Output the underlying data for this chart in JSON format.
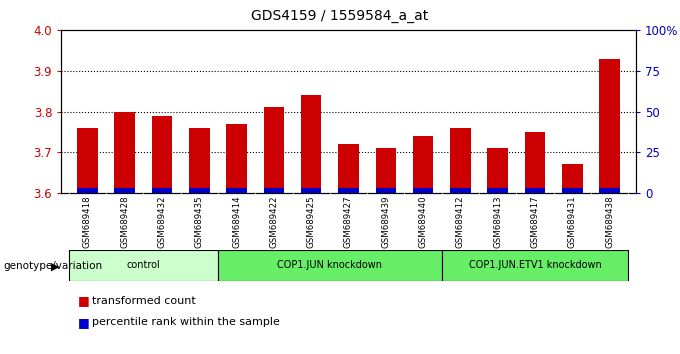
{
  "title": "GDS4159 / 1559584_a_at",
  "samples": [
    "GSM689418",
    "GSM689428",
    "GSM689432",
    "GSM689435",
    "GSM689414",
    "GSM689422",
    "GSM689425",
    "GSM689427",
    "GSM689439",
    "GSM689440",
    "GSM689412",
    "GSM689413",
    "GSM689417",
    "GSM689431",
    "GSM689438"
  ],
  "red_values": [
    3.76,
    3.8,
    3.79,
    3.76,
    3.77,
    3.81,
    3.84,
    3.72,
    3.71,
    3.74,
    3.76,
    3.71,
    3.75,
    3.67,
    3.93
  ],
  "blue_pct": [
    3,
    3,
    3,
    3,
    3,
    3,
    3,
    3,
    3,
    3,
    3,
    3,
    3,
    3,
    3
  ],
  "ylim_left": [
    3.6,
    4.0
  ],
  "ylim_right": [
    0,
    100
  ],
  "yticks_left": [
    3.6,
    3.7,
    3.8,
    3.9,
    4.0
  ],
  "yticks_right": [
    0,
    25,
    50,
    75,
    100
  ],
  "ytick_right_labels": [
    "0",
    "25",
    "50",
    "75",
    "100%"
  ],
  "bar_color": "#cc0000",
  "blue_color": "#0000cc",
  "bar_width": 0.55,
  "ylabel_left_color": "#cc0000",
  "ylabel_right_color": "#0000bb",
  "bg_color": "#ffffff",
  "title_fontsize": 10,
  "legend_red_label": "transformed count",
  "legend_blue_label": "percentile rank within the sample",
  "genotype_label": "genotype/variation",
  "group_boundaries": [
    {
      "label": "control",
      "start": 0,
      "end": 3,
      "color": "#ccffcc"
    },
    {
      "label": "COP1.JUN knockdown",
      "start": 4,
      "end": 9,
      "color": "#66ee66"
    },
    {
      "label": "COP1.JUN.ETV1 knockdown",
      "start": 10,
      "end": 14,
      "color": "#66ee66"
    }
  ],
  "sample_bg": "#d8d8d8",
  "hgrid_vals": [
    3.7,
    3.8,
    3.9
  ]
}
